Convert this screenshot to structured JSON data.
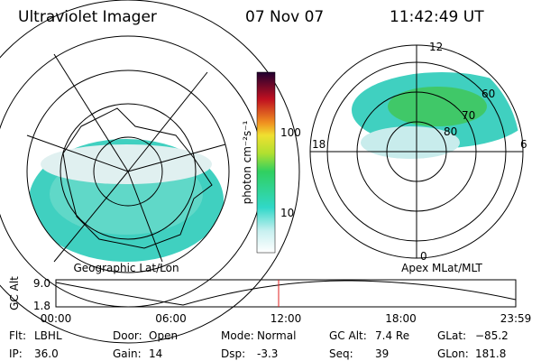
{
  "header": {
    "title": "Ultraviolet Imager",
    "date": "07 Nov 07",
    "time": "11:42:49 UT"
  },
  "left_map": {
    "label": "Geographic Lat/Lon"
  },
  "colorbar": {
    "unit": "photon cm⁻²s⁻¹",
    "ticks": [
      "100",
      "10"
    ]
  },
  "right_map": {
    "label": "Apex MLat/MLT",
    "hours": [
      "12",
      "18",
      "6",
      "0"
    ],
    "latitudes": [
      "60",
      "70",
      "80"
    ]
  },
  "altitude": {
    "ylabel": "GC Alt",
    "yticks": [
      "9.0",
      "1.8"
    ],
    "xticks": [
      "00:00",
      "06:00",
      "12:00",
      "18:00",
      "23:59"
    ]
  },
  "footer": {
    "rows": [
      [
        [
          "Flt:",
          "LBHL"
        ],
        [
          "Door:",
          "Open"
        ],
        [
          "Mode:",
          "Normal"
        ],
        [
          "GC Alt:",
          "7.4 Re"
        ],
        [
          "GLat:",
          "−85.2"
        ]
      ],
      [
        [
          "IP:",
          "36.0"
        ],
        [
          "Gain:",
          "14"
        ],
        [
          "Dsp:",
          "-3.3"
        ],
        [
          "Seq:",
          "39"
        ],
        [
          "GLon:",
          "181.8"
        ]
      ]
    ]
  }
}
